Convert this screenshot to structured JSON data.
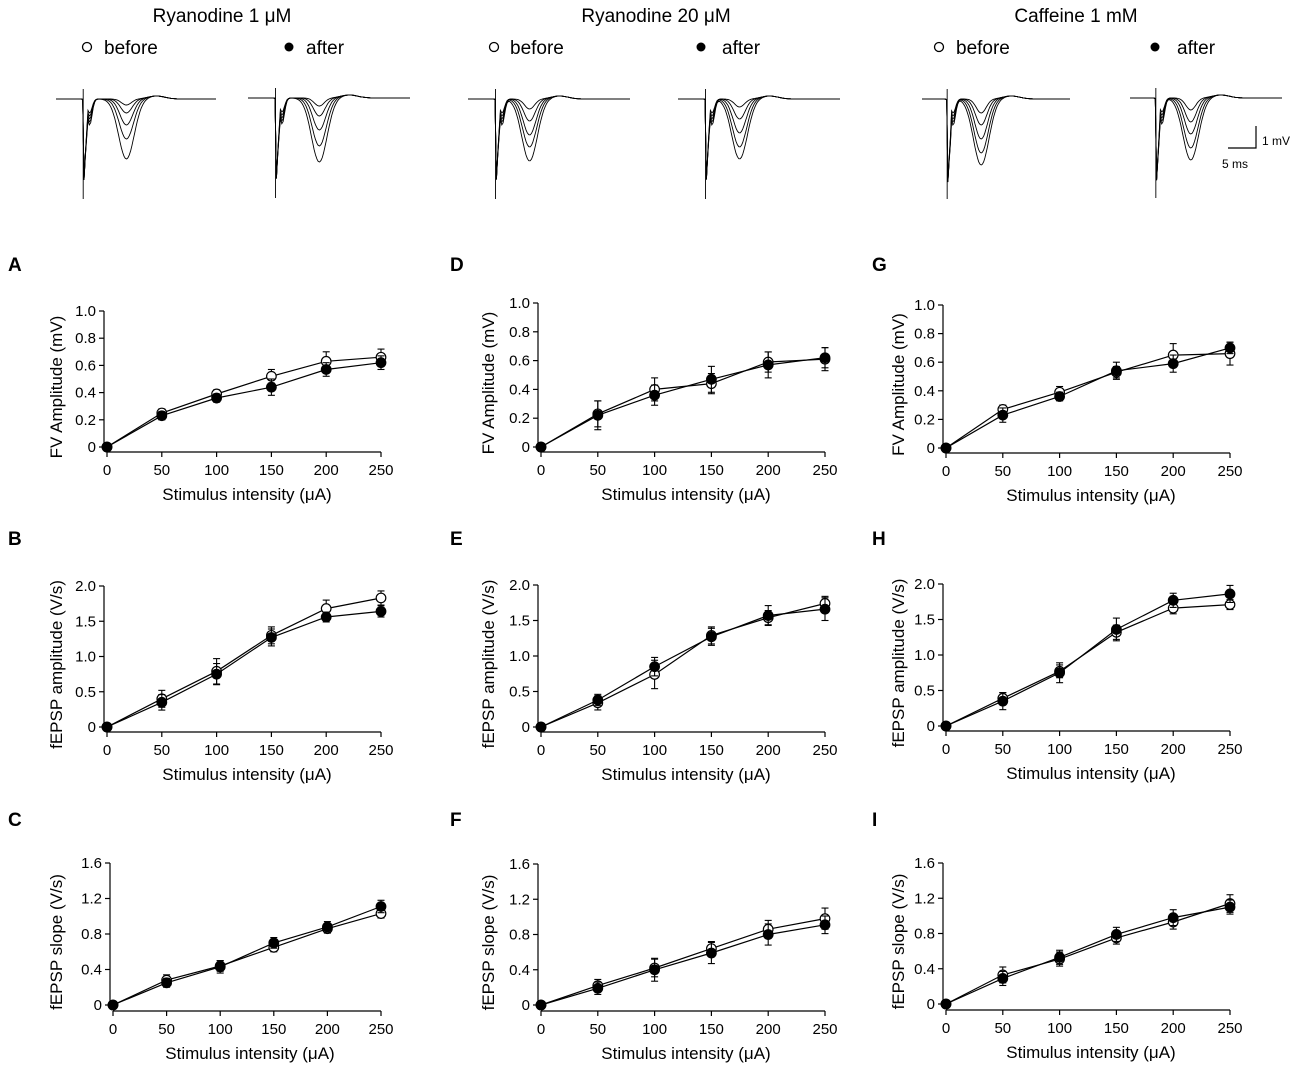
{
  "conditions": [
    {
      "title": "Ryanodine 1 μM",
      "legend_before": "before",
      "legend_after": "after"
    },
    {
      "title": "Ryanodine  20 μM",
      "legend_before": "before",
      "legend_after": "after"
    },
    {
      "title": "Caffeine 1 mM",
      "legend_before": "before",
      "legend_after": "after"
    }
  ],
  "scale_bar": {
    "vertical": "1 mV",
    "horizontal": "5 ms"
  },
  "colors": {
    "before_fill": "#ffffff",
    "after_fill": "#000000",
    "ink": "#000000"
  },
  "chart_data": [
    {
      "id": "A",
      "type": "line",
      "ylabel": "FV Amplitude (mV)",
      "xlabel": "Stimulus intensity (μA)",
      "x": [
        0,
        50,
        100,
        150,
        200,
        250
      ],
      "xlim": [
        0,
        250
      ],
      "ylim": [
        0,
        1.0
      ],
      "yticks": [
        "0",
        "0.2",
        "0.4",
        "0.6",
        "0.8",
        "1.0"
      ],
      "series": [
        {
          "name": "before",
          "values": [
            0,
            0.25,
            0.39,
            0.52,
            0.63,
            0.66
          ],
          "errors": [
            0,
            0.03,
            0.03,
            0.05,
            0.07,
            0.06
          ]
        },
        {
          "name": "after",
          "values": [
            0,
            0.23,
            0.36,
            0.44,
            0.57,
            0.62
          ],
          "errors": [
            0,
            0.03,
            0.03,
            0.06,
            0.05,
            0.05
          ]
        }
      ]
    },
    {
      "id": "B",
      "type": "line",
      "ylabel": "fEPSP amplitude (V/s)",
      "xlabel": "Stimulus intensity (μA)",
      "x": [
        0,
        50,
        100,
        150,
        200,
        250
      ],
      "xlim": [
        0,
        250
      ],
      "ylim": [
        0,
        2.0
      ],
      "yticks": [
        "0",
        "0.5",
        "1.0",
        "1.5",
        "2.0"
      ],
      "series": [
        {
          "name": "before",
          "values": [
            0,
            0.4,
            0.79,
            1.3,
            1.68,
            1.83
          ],
          "errors": [
            0,
            0.12,
            0.18,
            0.12,
            0.12,
            0.1
          ]
        },
        {
          "name": "after",
          "values": [
            0,
            0.35,
            0.75,
            1.27,
            1.56,
            1.64
          ],
          "errors": [
            0,
            0.11,
            0.15,
            0.12,
            0.07,
            0.08
          ]
        }
      ]
    },
    {
      "id": "C",
      "type": "line",
      "ylabel": "fEPSP slope (V/s)",
      "xlabel": "Stimulus intensity (μA)",
      "x": [
        0,
        50,
        100,
        150,
        200,
        250
      ],
      "xlim": [
        0,
        250
      ],
      "ylim": [
        0,
        1.6
      ],
      "yticks": [
        "0",
        "0.4",
        "0.8",
        "1.2",
        "1.6"
      ],
      "series": [
        {
          "name": "before",
          "values": [
            0,
            0.28,
            0.44,
            0.65,
            0.86,
            1.03
          ],
          "errors": [
            0,
            0.06,
            0.06,
            0.05,
            0.05,
            0.05
          ]
        },
        {
          "name": "after",
          "values": [
            0,
            0.25,
            0.43,
            0.7,
            0.88,
            1.11
          ],
          "errors": [
            0,
            0.05,
            0.07,
            0.06,
            0.06,
            0.07
          ]
        }
      ]
    },
    {
      "id": "D",
      "type": "line",
      "ylabel": "FV Amplitude (mV)",
      "xlabel": "Stimulus intensity (μA)",
      "x": [
        0,
        50,
        100,
        150,
        200,
        250
      ],
      "xlim": [
        0,
        250
      ],
      "ylim": [
        0,
        1.0
      ],
      "yticks": [
        "0",
        "0.2",
        "0.4",
        "0.6",
        "0.8",
        "1.0"
      ],
      "series": [
        {
          "name": "before",
          "values": [
            0,
            0.23,
            0.4,
            0.44,
            0.59,
            0.61
          ],
          "errors": [
            0,
            0.09,
            0.08,
            0.07,
            0.07,
            0.08
          ]
        },
        {
          "name": "after",
          "values": [
            0,
            0.22,
            0.36,
            0.47,
            0.57,
            0.62
          ],
          "errors": [
            0,
            0.1,
            0.07,
            0.09,
            0.09,
            0.07
          ]
        }
      ]
    },
    {
      "id": "E",
      "type": "line",
      "ylabel": "fEPSP amplitude (V/s)",
      "xlabel": "Stimulus intensity (μA)",
      "x": [
        0,
        50,
        100,
        150,
        200,
        250
      ],
      "xlim": [
        0,
        250
      ],
      "ylim": [
        0,
        2.0
      ],
      "yticks": [
        "0",
        "0.5",
        "1.0",
        "1.5",
        "2.0"
      ],
      "series": [
        {
          "name": "before",
          "values": [
            0,
            0.34,
            0.74,
            1.29,
            1.54,
            1.74
          ],
          "errors": [
            0,
            0.1,
            0.2,
            0.12,
            0.1,
            0.1
          ]
        },
        {
          "name": "after",
          "values": [
            0,
            0.38,
            0.85,
            1.27,
            1.57,
            1.66
          ],
          "errors": [
            0,
            0.08,
            0.13,
            0.12,
            0.14,
            0.16
          ]
        }
      ]
    },
    {
      "id": "F",
      "type": "line",
      "ylabel": "fEPSP slope (V/s)",
      "xlabel": "Stimulus intensity (μA)",
      "x": [
        0,
        50,
        100,
        150,
        200,
        250
      ],
      "xlim": [
        0,
        250
      ],
      "ylim": [
        0,
        1.6
      ],
      "yticks": [
        "0",
        "0.4",
        "0.8",
        "1.2",
        "1.6"
      ],
      "series": [
        {
          "name": "before",
          "values": [
            0,
            0.22,
            0.42,
            0.64,
            0.86,
            0.98
          ],
          "errors": [
            0,
            0.07,
            0.1,
            0.08,
            0.1,
            0.12
          ]
        },
        {
          "name": "after",
          "values": [
            0,
            0.19,
            0.4,
            0.59,
            0.8,
            0.91
          ],
          "errors": [
            0,
            0.07,
            0.13,
            0.12,
            0.12,
            0.1
          ]
        }
      ]
    },
    {
      "id": "G",
      "type": "line",
      "ylabel": "FV Amplitude (mV)",
      "xlabel": "Stimulus intensity (μA)",
      "x": [
        0,
        50,
        100,
        150,
        200,
        250
      ],
      "xlim": [
        0,
        250
      ],
      "ylim": [
        0,
        1.0
      ],
      "yticks": [
        "0",
        "0.2",
        "0.4",
        "0.6",
        "0.8",
        "1.0"
      ],
      "series": [
        {
          "name": "before",
          "values": [
            0,
            0.27,
            0.39,
            0.53,
            0.65,
            0.66
          ],
          "errors": [
            0,
            0.03,
            0.04,
            0.04,
            0.08,
            0.08
          ]
        },
        {
          "name": "after",
          "values": [
            0,
            0.23,
            0.36,
            0.54,
            0.59,
            0.7
          ],
          "errors": [
            0,
            0.05,
            0.03,
            0.06,
            0.06,
            0.04
          ]
        }
      ]
    },
    {
      "id": "H",
      "type": "line",
      "ylabel": "fEPSP amplitude (V/s)",
      "xlabel": "Stimulus intensity (μA)",
      "x": [
        0,
        50,
        100,
        150,
        200,
        250
      ],
      "xlim": [
        0,
        250
      ],
      "ylim": [
        0,
        2.0
      ],
      "yticks": [
        "0",
        "0.5",
        "1.0",
        "1.5",
        "2.0"
      ],
      "series": [
        {
          "name": "before",
          "values": [
            0,
            0.39,
            0.77,
            1.32,
            1.66,
            1.71
          ],
          "errors": [
            0,
            0.08,
            0.09,
            0.1,
            0.08,
            0.07
          ]
        },
        {
          "name": "after",
          "values": [
            0,
            0.35,
            0.75,
            1.36,
            1.77,
            1.86
          ],
          "errors": [
            0,
            0.12,
            0.14,
            0.16,
            0.1,
            0.12
          ]
        }
      ]
    },
    {
      "id": "I",
      "type": "line",
      "ylabel": "fEPSP slope (V/s)",
      "xlabel": "Stimulus intensity (μA)",
      "x": [
        0,
        50,
        100,
        150,
        200,
        250
      ],
      "xlim": [
        0,
        250
      ],
      "ylim": [
        0,
        1.6
      ],
      "yticks": [
        "0",
        "0.4",
        "0.8",
        "1.2",
        "1.6"
      ],
      "series": [
        {
          "name": "before",
          "values": [
            0,
            0.33,
            0.51,
            0.75,
            0.93,
            1.14
          ],
          "errors": [
            0,
            0.09,
            0.08,
            0.07,
            0.08,
            0.1
          ]
        },
        {
          "name": "after",
          "values": [
            0,
            0.29,
            0.53,
            0.79,
            0.98,
            1.1
          ],
          "errors": [
            0,
            0.08,
            0.08,
            0.08,
            0.09,
            0.08
          ]
        }
      ]
    }
  ]
}
